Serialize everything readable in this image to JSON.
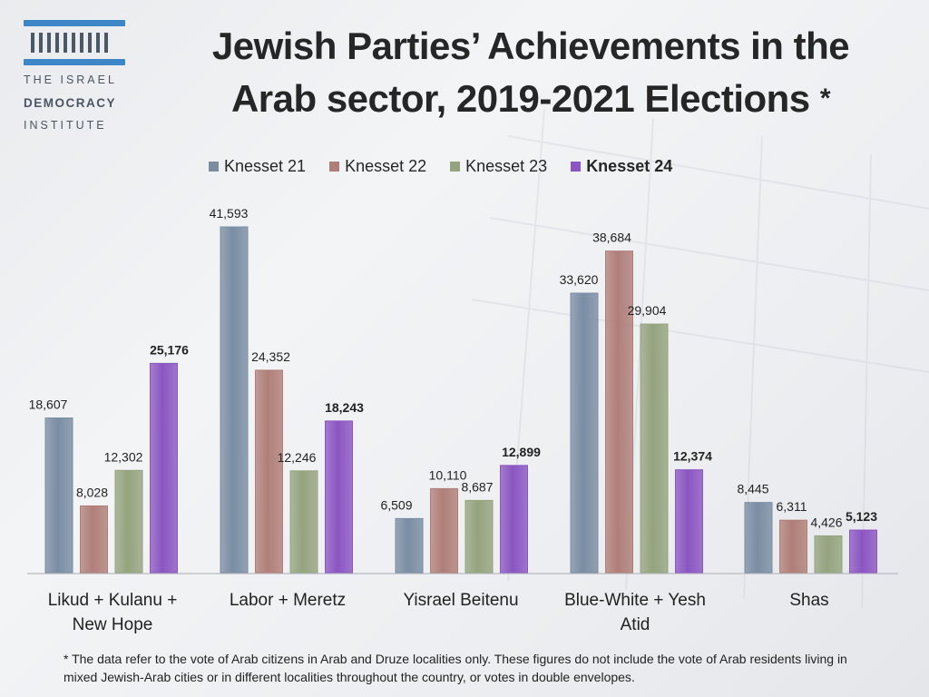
{
  "logo": {
    "line1": "THE ISRAEL",
    "line2": "DEMOCRACY",
    "line3": "INSTITUTE"
  },
  "title": {
    "line1": "Jewish Parties’ Achievements in the",
    "line2": "Arab sector, 2019-2021 Elections",
    "star": "*"
  },
  "footnote": "* The data refer to the vote of Arab citizens in Arab and Druze localities only. These figures do not include the vote of Arab residents living in mixed Jewish-Arab cities or in different localities throughout the country, or votes in double envelopes.",
  "colors": {
    "k21": "#7a8da3",
    "k22": "#b07e78",
    "k23": "#95a37e",
    "k24": "#8b55c2"
  },
  "chart_data": {
    "type": "bar",
    "title": "Jewish Parties’ Achievements in the Arab sector, 2019-2021 Elections",
    "categories": [
      [
        "Likud + Kulanu +",
        "New Hope"
      ],
      [
        "Labor + Meretz"
      ],
      [
        "Yisrael Beitenu"
      ],
      [
        "Blue-White + Yesh",
        "Atid"
      ],
      [
        "Shas"
      ]
    ],
    "series": [
      {
        "name": "Knesset 21",
        "values": [
          18607,
          41593,
          6509,
          33620,
          8445
        ]
      },
      {
        "name": "Knesset 22",
        "values": [
          8028,
          24352,
          10110,
          38684,
          6311
        ]
      },
      {
        "name": "Knesset 23",
        "values": [
          12302,
          12246,
          8687,
          29904,
          4426
        ]
      },
      {
        "name": "Knesset 24",
        "values": [
          25176,
          18243,
          12899,
          12374,
          5123
        ]
      }
    ],
    "value_labels": [
      [
        "18,607",
        "41,593",
        "6,509",
        "33,620",
        "8,445"
      ],
      [
        "8,028",
        "24,352",
        "10,110",
        "38,684",
        "6,311"
      ],
      [
        "12,302",
        "12,246",
        "8,687",
        "29,904",
        "4,426"
      ],
      [
        "25,176",
        "18,243",
        "12,899",
        "12,374",
        "5,123"
      ]
    ],
    "ylim": [
      0,
      42000
    ],
    "xlabel": "",
    "ylabel": "",
    "grid": false,
    "legend_position": "top"
  }
}
